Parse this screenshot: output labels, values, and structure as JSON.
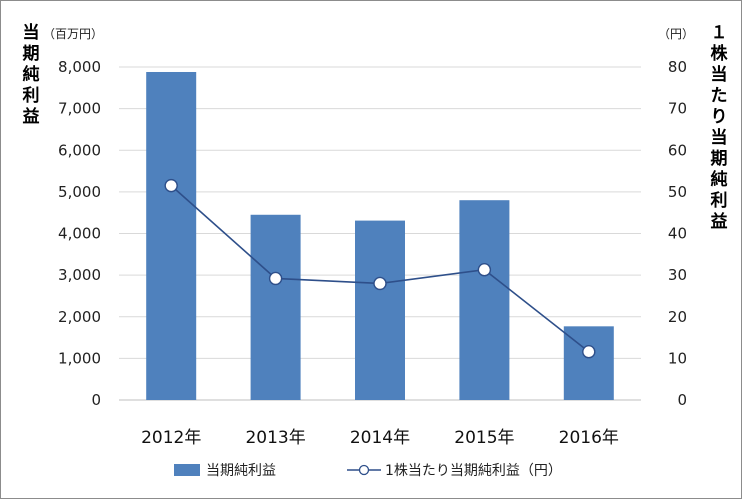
{
  "chart_data": {
    "type": "bar",
    "categories": [
      "2012年",
      "2013年",
      "2014年",
      "2015年",
      "2016年"
    ],
    "series": [
      {
        "name": "当期純利益",
        "type": "bar",
        "axis": "left",
        "values": [
          7880,
          4450,
          4310,
          4800,
          1770
        ]
      },
      {
        "name": "1株当たり当期純利益（円）",
        "type": "line",
        "axis": "right",
        "values": [
          51.5,
          29.2,
          28.0,
          31.3,
          11.6
        ]
      }
    ],
    "y_left": {
      "title": "当期純利益",
      "unit": "（百万円）",
      "ylim": [
        0,
        8000
      ],
      "ticks": [
        "0",
        "1,000",
        "2,000",
        "3,000",
        "4,000",
        "5,000",
        "6,000",
        "7,000",
        "8,000"
      ]
    },
    "y_right": {
      "title": "１株当たり当期純利益",
      "unit": "（円）",
      "ylim": [
        0,
        80
      ],
      "ticks": [
        "0",
        "10",
        "20",
        "30",
        "40",
        "50",
        "60",
        "70",
        "80"
      ]
    },
    "grid": true,
    "legend": "bottom",
    "colors": {
      "bar": "#4f81bd",
      "line": "#2e4f8a",
      "marker_fill": "#ffffff",
      "grid": "#d9d9d9"
    }
  }
}
